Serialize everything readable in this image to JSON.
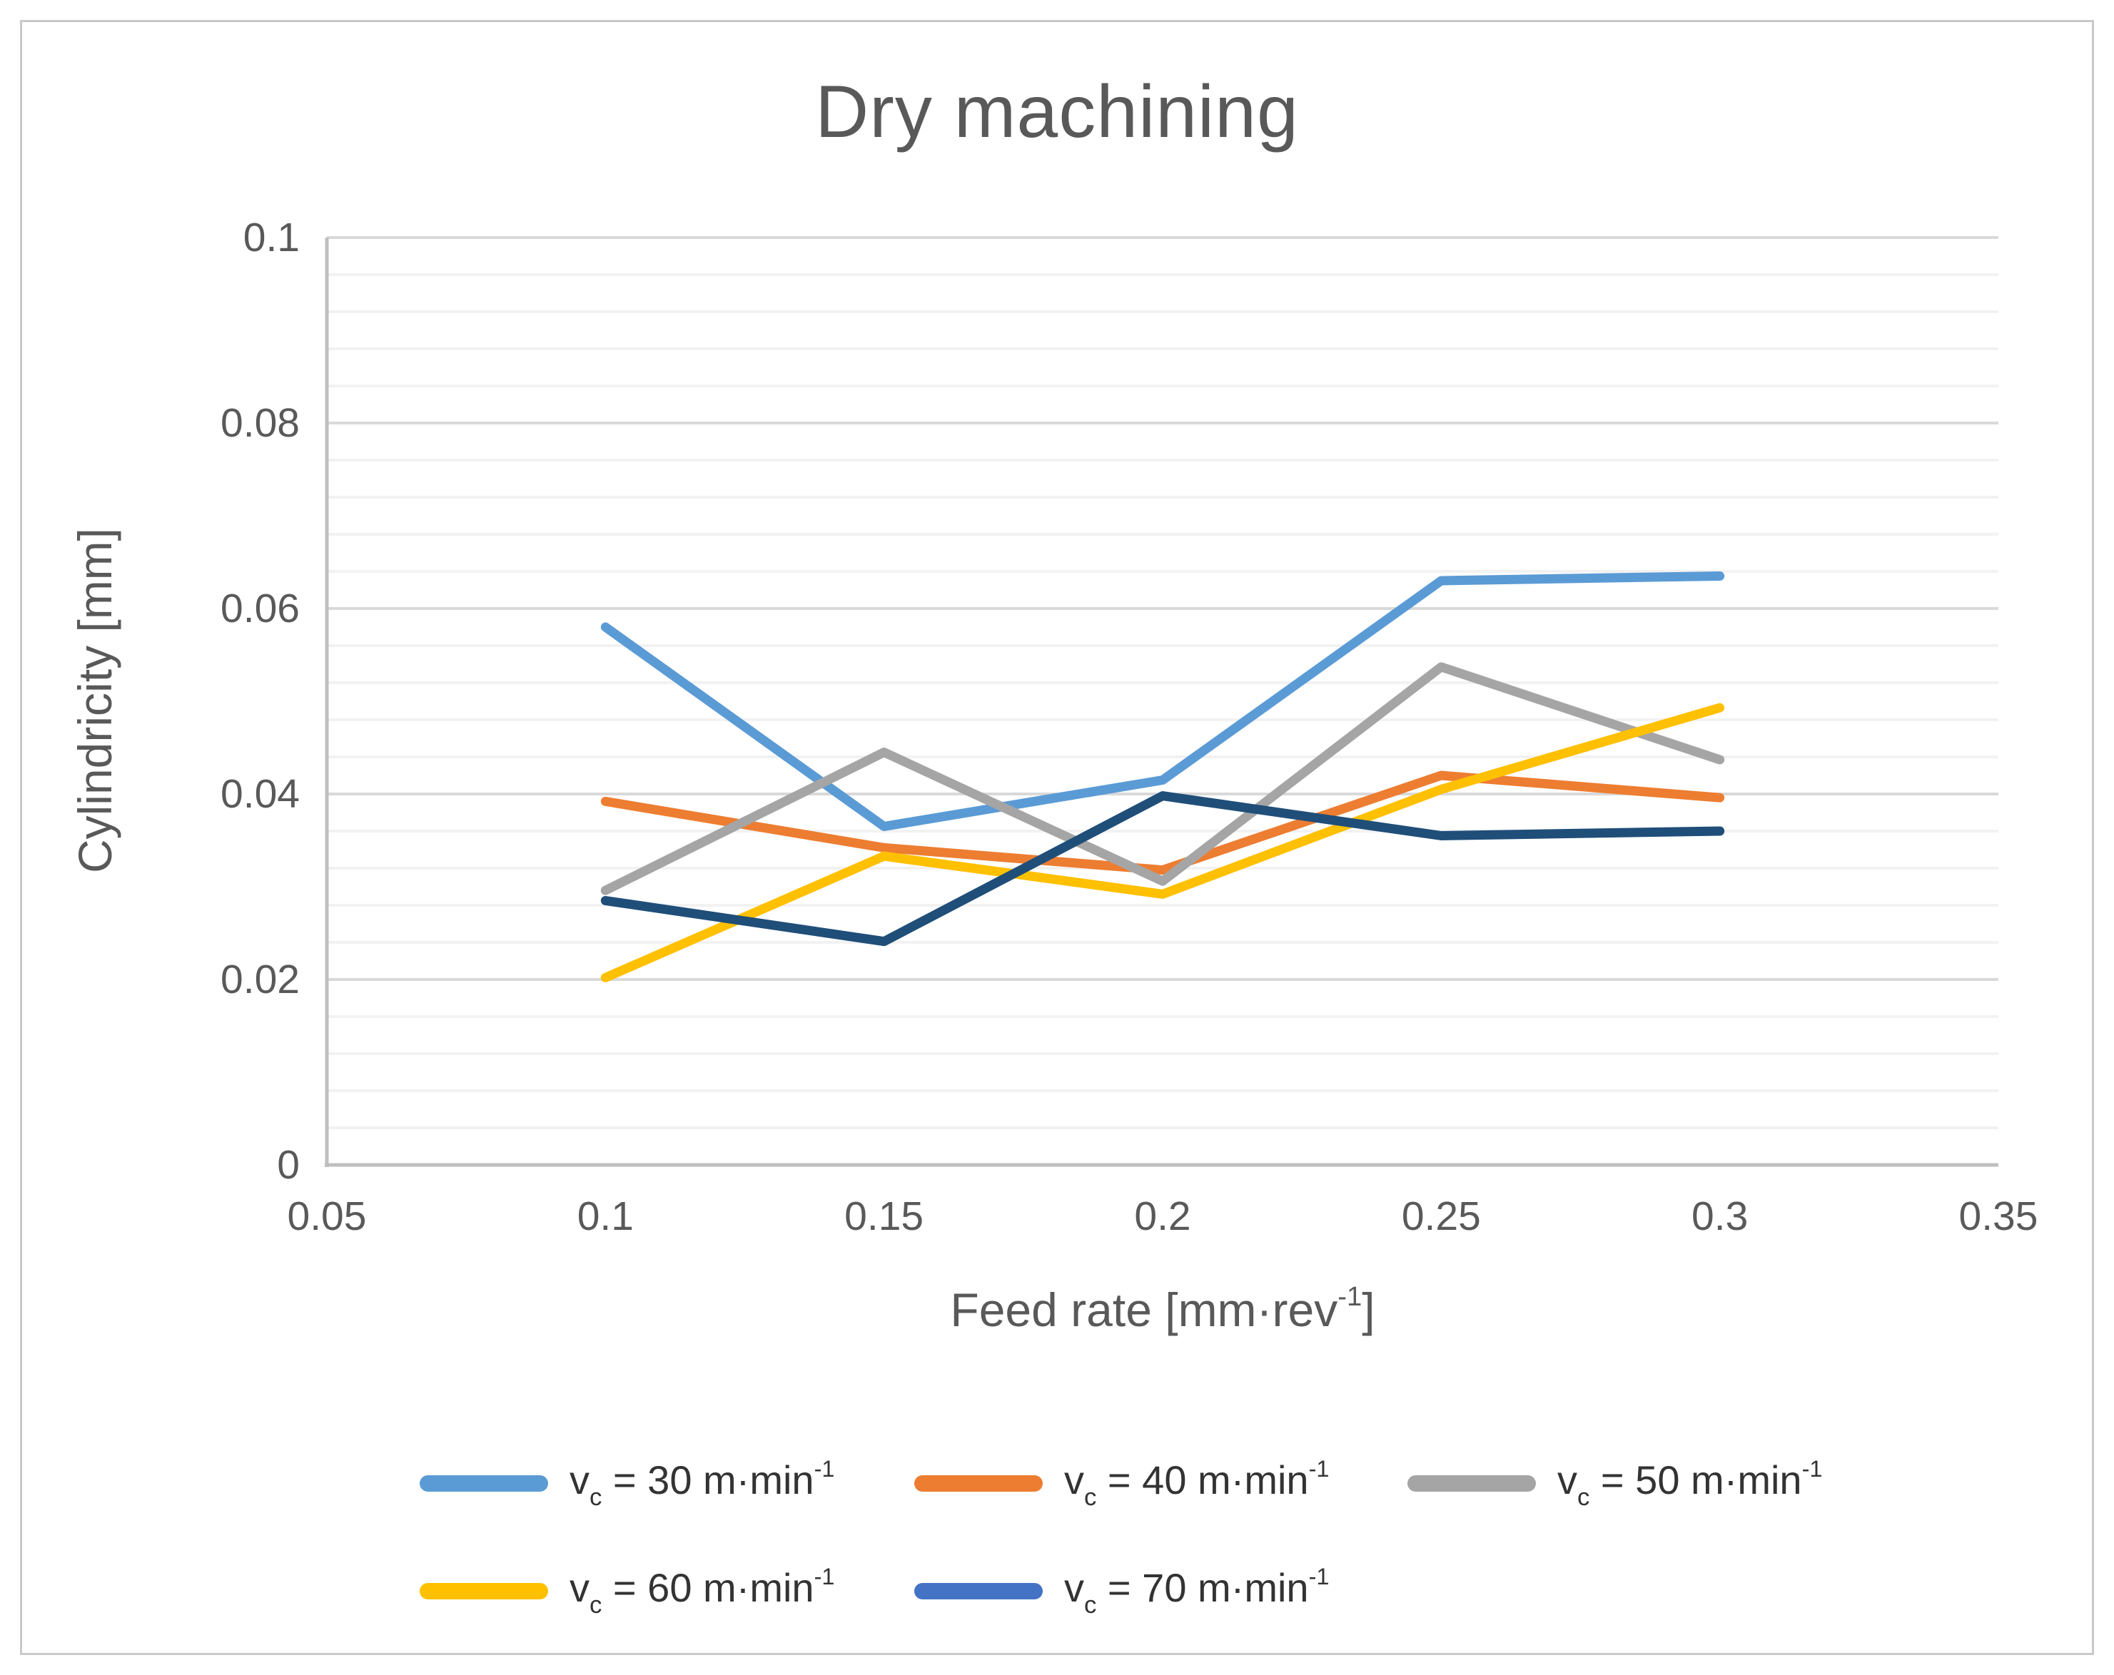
{
  "figure": {
    "border_color": "#c9c9c9",
    "background": "#ffffff",
    "text_color": "#595959"
  },
  "chart_data": {
    "type": "line",
    "title": "Dry machining",
    "xlabel": "Feed rate [mm·rev-1]",
    "ylabel": "Cylindricity [mm]",
    "x": [
      0.1,
      0.15,
      0.2,
      0.25,
      0.3
    ],
    "xlim": [
      0.05,
      0.35
    ],
    "ylim": [
      0,
      0.1
    ],
    "y_major_step": 0.02,
    "y_minor_step": 0.004,
    "grid": "horizontal, major and minor lines",
    "legend_position": "bottom",
    "gridline_major_color": "#d9d9d9",
    "gridline_minor_color": "#f2f2f2",
    "axis_line_color": "#bfbfbf",
    "x_ticks": [
      {
        "label": "0.05",
        "value": 0.05
      },
      {
        "label": "0.1",
        "value": 0.1
      },
      {
        "label": "0.15",
        "value": 0.15
      },
      {
        "label": "0.2",
        "value": 0.2
      },
      {
        "label": "0.25",
        "value": 0.25
      },
      {
        "label": "0.3",
        "value": 0.3
      },
      {
        "label": "0.35",
        "value": 0.35
      }
    ],
    "y_ticks": [
      {
        "label": "0",
        "value": 0
      },
      {
        "label": "0.02",
        "value": 0.02
      },
      {
        "label": "0.04",
        "value": 0.04
      },
      {
        "label": "0.06",
        "value": 0.06
      },
      {
        "label": "0.08",
        "value": 0.08
      },
      {
        "label": "0.1",
        "value": 0.1
      }
    ],
    "series": [
      {
        "name": "vc = 30 m·min-1",
        "color": "#5B9BD5",
        "swatch_color": "#5B9BD5",
        "values": [
          0.058,
          0.0365,
          0.0415,
          0.063,
          0.0635
        ],
        "legend_parts": {
          "pre": "v",
          "sub": "c",
          "mid": " = 30 m·min",
          "sup": "-1"
        }
      },
      {
        "name": "vc = 40 m·min-1",
        "color": "#ED7D31",
        "swatch_color": "#ED7D31",
        "values": [
          0.0392,
          0.0342,
          0.0318,
          0.042,
          0.0396
        ],
        "legend_parts": {
          "pre": "v",
          "sub": "c",
          "mid": " = 40 m·min",
          "sup": "-1"
        }
      },
      {
        "name": "vc = 50 m·min-1",
        "color": "#A5A5A5",
        "swatch_color": "#A5A5A5",
        "values": [
          0.0296,
          0.0445,
          0.0306,
          0.0537,
          0.0437
        ],
        "legend_parts": {
          "pre": "v",
          "sub": "c",
          "mid": " = 50 m·min",
          "sup": "-1"
        }
      },
      {
        "name": "vc = 60 m·min-1",
        "color": "#FFC000",
        "swatch_color": "#FFC000",
        "values": [
          0.0202,
          0.0333,
          0.0292,
          0.0405,
          0.0493
        ],
        "legend_parts": {
          "pre": "v",
          "sub": "c",
          "mid": " = 60 m·min",
          "sup": "-1"
        }
      },
      {
        "name": "vc = 70 m·min-1",
        "color": "#1F4E79",
        "swatch_color": "#4472C4",
        "values": [
          0.0285,
          0.0241,
          0.0398,
          0.0355,
          0.036
        ],
        "legend_parts": {
          "pre": "v",
          "sub": "c",
          "mid": " = 70 m·min",
          "sup": "-1"
        }
      }
    ]
  },
  "x_axis_title_display": {
    "main": "Feed rate [mm·rev",
    "sup": "-1",
    "close": "]"
  }
}
